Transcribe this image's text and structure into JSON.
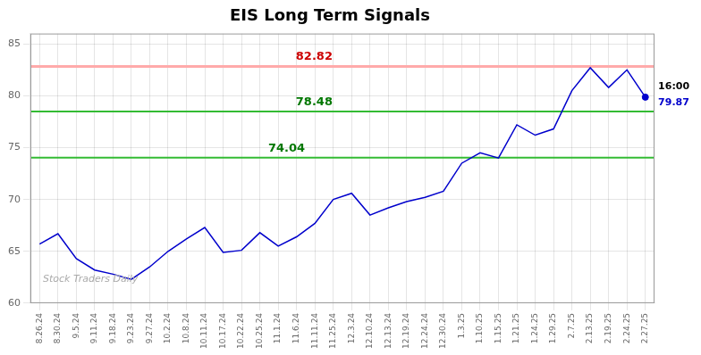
{
  "chart_data": {
    "type": "line",
    "title": "EIS Long Term Signals",
    "categories": [
      "8.26.24",
      "8.30.24",
      "9.5.24",
      "9.11.24",
      "9.18.24",
      "9.23.24",
      "9.27.24",
      "10.2.24",
      "10.8.24",
      "10.11.24",
      "10.17.24",
      "10.22.24",
      "10.25.24",
      "11.1.24",
      "11.6.24",
      "11.11.24",
      "11.25.24",
      "12.3.24",
      "12.10.24",
      "12.13.24",
      "12.19.24",
      "12.24.24",
      "12.30.24",
      "1.3.25",
      "1.10.25",
      "1.15.25",
      "1.21.25",
      "1.24.25",
      "1.29.25",
      "2.7.25",
      "2.13.25",
      "2.19.25",
      "2.24.25",
      "2.27.25"
    ],
    "values": [
      65.7,
      66.7,
      64.3,
      63.2,
      62.8,
      62.3,
      63.5,
      65.0,
      66.2,
      67.3,
      64.9,
      65.1,
      66.8,
      65.5,
      66.4,
      67.7,
      70.0,
      70.6,
      68.5,
      69.2,
      69.8,
      70.2,
      70.8,
      73.5,
      74.5,
      74.0,
      77.2,
      76.2,
      76.8,
      80.5,
      82.7,
      80.8,
      82.5,
      79.87
    ],
    "color": "#0000cc",
    "ylim": [
      60,
      86
    ],
    "yticks": [
      60,
      65,
      70,
      75,
      80,
      85
    ],
    "grid": true,
    "hlines": [
      {
        "value": 82.82,
        "label": "82.82",
        "color": "#ffaaaa",
        "label_color": "#cc0000"
      },
      {
        "value": 78.48,
        "label": "78.48",
        "color": "#33bb33",
        "label_color": "#007700"
      },
      {
        "value": 74.04,
        "label": "74.04",
        "color": "#33bb33",
        "label_color": "#007700"
      }
    ],
    "end_point": {
      "value": 79.87,
      "label": "79.87",
      "time_label": "16:00"
    },
    "watermark": "Stock Traders Daily"
  }
}
